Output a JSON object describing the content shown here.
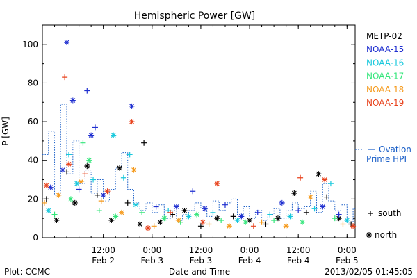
{
  "chart_data": {
    "type": "scatter",
    "title": "Hemispheric Power [GW]",
    "ylabel": "P [GW]",
    "xlabel": "Date and Time",
    "ylim": [
      0,
      110
    ],
    "y_ticks": [
      0,
      20,
      40,
      60,
      80,
      100
    ],
    "x_start": "2013-02-01T21:00",
    "x_end": "2013-02-05T02:00",
    "x_ticks": [
      {
        "x": "2013-02-02T12:00",
        "label": "12:00",
        "sublabel": "Feb 2"
      },
      {
        "x": "2013-02-03T00:00",
        "label": "0:00",
        "sublabel": "Feb 3"
      },
      {
        "x": "2013-02-03T12:00",
        "label": "12:00",
        "sublabel": "Feb 3"
      },
      {
        "x": "2013-02-04T00:00",
        "label": "0:00",
        "sublabel": "Feb 4"
      },
      {
        "x": "2013-02-04T12:00",
        "label": "12:00",
        "sublabel": "Feb 4"
      },
      {
        "x": "2013-02-05T00:00",
        "label": "0:00",
        "sublabel": "Feb 5"
      }
    ],
    "legend": {
      "placement": "right",
      "symbol_south_label": "south",
      "symbol_north_label": "north",
      "ovation_label_line1": "Ovation",
      "ovation_label_line2": "Prime HPI"
    },
    "series": [
      {
        "name": "METP-02",
        "color": "#000000",
        "points": [
          {
            "x": "2013-02-01T22:00",
            "y": 20,
            "hemi": "south"
          },
          {
            "x": "2013-02-02T00:30",
            "y": 9,
            "hemi": "north"
          },
          {
            "x": "2013-02-02T03:00",
            "y": 34,
            "hemi": "south"
          },
          {
            "x": "2013-02-02T05:00",
            "y": 18,
            "hemi": "north"
          },
          {
            "x": "2013-02-02T08:00",
            "y": 37,
            "hemi": "north"
          },
          {
            "x": "2013-02-02T10:30",
            "y": 22,
            "hemi": "south"
          },
          {
            "x": "2013-02-02T14:00",
            "y": 9,
            "hemi": "north"
          },
          {
            "x": "2013-02-02T16:00",
            "y": 36,
            "hemi": "north"
          },
          {
            "x": "2013-02-02T18:00",
            "y": 18,
            "hemi": "south"
          },
          {
            "x": "2013-02-02T21:00",
            "y": 7,
            "hemi": "north"
          },
          {
            "x": "2013-02-02T22:00",
            "y": 49,
            "hemi": "south"
          },
          {
            "x": "2013-02-03T02:00",
            "y": 8,
            "hemi": "north"
          },
          {
            "x": "2013-02-03T05:00",
            "y": 12,
            "hemi": "south"
          },
          {
            "x": "2013-02-03T08:00",
            "y": 14,
            "hemi": "north"
          },
          {
            "x": "2013-02-03T12:00",
            "y": 6,
            "hemi": "south"
          },
          {
            "x": "2013-02-03T16:00",
            "y": 10,
            "hemi": "north"
          },
          {
            "x": "2013-02-03T20:00",
            "y": 11,
            "hemi": "south"
          },
          {
            "x": "2013-02-04T00:00",
            "y": 9,
            "hemi": "north"
          },
          {
            "x": "2013-02-04T04:00",
            "y": 7,
            "hemi": "south"
          },
          {
            "x": "2013-02-04T07:00",
            "y": 10,
            "hemi": "north"
          },
          {
            "x": "2013-02-04T11:00",
            "y": 23,
            "hemi": "north"
          },
          {
            "x": "2013-02-04T14:00",
            "y": 13,
            "hemi": "south"
          },
          {
            "x": "2013-02-04T17:00",
            "y": 33,
            "hemi": "north"
          },
          {
            "x": "2013-02-04T19:00",
            "y": 21,
            "hemi": "south"
          },
          {
            "x": "2013-02-04T22:00",
            "y": 10,
            "hemi": "north"
          },
          {
            "x": "2013-02-05T01:00",
            "y": 7,
            "hemi": "south"
          }
        ]
      },
      {
        "name": "NOAA-15",
        "color": "#1f2fd0",
        "points": [
          {
            "x": "2013-02-01T23:00",
            "y": 26,
            "hemi": "north"
          },
          {
            "x": "2013-02-02T02:00",
            "y": 35,
            "hemi": "north"
          },
          {
            "x": "2013-02-02T03:00",
            "y": 101,
            "hemi": "north"
          },
          {
            "x": "2013-02-02T04:30",
            "y": 71,
            "hemi": "north"
          },
          {
            "x": "2013-02-02T06:00",
            "y": 25,
            "hemi": "south"
          },
          {
            "x": "2013-02-02T08:00",
            "y": 76,
            "hemi": "south"
          },
          {
            "x": "2013-02-02T09:00",
            "y": 53,
            "hemi": "north"
          },
          {
            "x": "2013-02-02T10:00",
            "y": 57,
            "hemi": "south"
          },
          {
            "x": "2013-02-02T12:00",
            "y": 22,
            "hemi": "north"
          },
          {
            "x": "2013-02-02T19:00",
            "y": 68,
            "hemi": "north"
          },
          {
            "x": "2013-02-03T01:00",
            "y": 16,
            "hemi": "south"
          },
          {
            "x": "2013-02-03T06:00",
            "y": 16,
            "hemi": "north"
          },
          {
            "x": "2013-02-03T10:00",
            "y": 24,
            "hemi": "south"
          },
          {
            "x": "2013-02-03T13:00",
            "y": 15,
            "hemi": "north"
          },
          {
            "x": "2013-02-03T18:00",
            "y": 17,
            "hemi": "south"
          },
          {
            "x": "2013-02-03T22:00",
            "y": 11,
            "hemi": "north"
          },
          {
            "x": "2013-02-04T02:00",
            "y": 13,
            "hemi": "south"
          },
          {
            "x": "2013-02-04T08:00",
            "y": 18,
            "hemi": "north"
          },
          {
            "x": "2013-02-04T12:00",
            "y": 14,
            "hemi": "south"
          },
          {
            "x": "2013-02-04T18:00",
            "y": 16,
            "hemi": "north"
          },
          {
            "x": "2013-02-04T22:00",
            "y": 12,
            "hemi": "south"
          }
        ]
      },
      {
        "name": "NOAA-16",
        "color": "#18c8dc",
        "points": [
          {
            "x": "2013-02-01T22:30",
            "y": 14,
            "hemi": "north"
          },
          {
            "x": "2013-02-02T03:30",
            "y": 43,
            "hemi": "south"
          },
          {
            "x": "2013-02-02T05:30",
            "y": 28,
            "hemi": "north"
          },
          {
            "x": "2013-02-02T09:30",
            "y": 30,
            "hemi": "south"
          },
          {
            "x": "2013-02-02T14:30",
            "y": 53,
            "hemi": "north"
          },
          {
            "x": "2013-02-02T17:00",
            "y": 31,
            "hemi": "south"
          },
          {
            "x": "2013-02-02T18:30",
            "y": 43,
            "hemi": "south"
          },
          {
            "x": "2013-02-02T20:00",
            "y": 17,
            "hemi": "north"
          },
          {
            "x": "2013-02-03T04:00",
            "y": 14,
            "hemi": "south"
          },
          {
            "x": "2013-02-03T09:00",
            "y": 11,
            "hemi": "north"
          },
          {
            "x": "2013-02-03T15:00",
            "y": 13,
            "hemi": "south"
          },
          {
            "x": "2013-02-03T21:00",
            "y": 9,
            "hemi": "north"
          },
          {
            "x": "2013-02-04T05:00",
            "y": 12,
            "hemi": "south"
          },
          {
            "x": "2013-02-04T10:00",
            "y": 11,
            "hemi": "north"
          },
          {
            "x": "2013-02-04T16:00",
            "y": 15,
            "hemi": "south"
          },
          {
            "x": "2013-02-04T20:00",
            "y": 28,
            "hemi": "south"
          },
          {
            "x": "2013-02-05T00:00",
            "y": 9,
            "hemi": "north"
          }
        ]
      },
      {
        "name": "NOAA-17",
        "color": "#33e67a",
        "points": [
          {
            "x": "2013-02-02T00:00",
            "y": 12,
            "hemi": "south"
          },
          {
            "x": "2013-02-02T04:00",
            "y": 20,
            "hemi": "north"
          },
          {
            "x": "2013-02-02T07:00",
            "y": 49,
            "hemi": "south"
          },
          {
            "x": "2013-02-02T08:30",
            "y": 40,
            "hemi": "north"
          },
          {
            "x": "2013-02-02T11:00",
            "y": 14,
            "hemi": "south"
          },
          {
            "x": "2013-02-02T15:00",
            "y": 11,
            "hemi": "north"
          },
          {
            "x": "2013-02-02T21:30",
            "y": 13,
            "hemi": "south"
          },
          {
            "x": "2013-02-03T03:00",
            "y": 10,
            "hemi": "north"
          },
          {
            "x": "2013-02-03T07:00",
            "y": 8,
            "hemi": "south"
          },
          {
            "x": "2013-02-03T11:00",
            "y": 12,
            "hemi": "north"
          },
          {
            "x": "2013-02-03T17:00",
            "y": 9,
            "hemi": "south"
          },
          {
            "x": "2013-02-03T23:00",
            "y": 8,
            "hemi": "north"
          },
          {
            "x": "2013-02-04T06:00",
            "y": 9,
            "hemi": "south"
          },
          {
            "x": "2013-02-04T13:00",
            "y": 8,
            "hemi": "north"
          },
          {
            "x": "2013-02-04T21:00",
            "y": 10,
            "hemi": "south"
          }
        ]
      },
      {
        "name": "NOAA-18",
        "color": "#f59a1c",
        "points": [
          {
            "x": "2013-02-01T21:30",
            "y": 18,
            "hemi": "south"
          },
          {
            "x": "2013-02-02T01:00",
            "y": 22,
            "hemi": "north"
          },
          {
            "x": "2013-02-02T06:30",
            "y": 29,
            "hemi": "north"
          },
          {
            "x": "2013-02-02T11:30",
            "y": 19,
            "hemi": "south"
          },
          {
            "x": "2013-02-02T16:30",
            "y": 13,
            "hemi": "north"
          },
          {
            "x": "2013-02-02T19:30",
            "y": 35,
            "hemi": "north"
          },
          {
            "x": "2013-02-03T00:30",
            "y": 6,
            "hemi": "south"
          },
          {
            "x": "2013-02-03T06:30",
            "y": 9,
            "hemi": "north"
          },
          {
            "x": "2013-02-03T14:00",
            "y": 7,
            "hemi": "south"
          },
          {
            "x": "2013-02-03T19:00",
            "y": 6,
            "hemi": "north"
          },
          {
            "x": "2013-02-04T03:00",
            "y": 8,
            "hemi": "south"
          },
          {
            "x": "2013-02-04T09:00",
            "y": 6,
            "hemi": "north"
          },
          {
            "x": "2013-02-04T15:00",
            "y": 21,
            "hemi": "north"
          },
          {
            "x": "2013-02-04T23:00",
            "y": 7,
            "hemi": "south"
          }
        ]
      },
      {
        "name": "NOAA-19",
        "color": "#e8421c",
        "points": [
          {
            "x": "2013-02-01T22:00",
            "y": 27,
            "hemi": "north"
          },
          {
            "x": "2013-02-02T02:30",
            "y": 83,
            "hemi": "south"
          },
          {
            "x": "2013-02-02T03:30",
            "y": 38,
            "hemi": "north"
          },
          {
            "x": "2013-02-02T07:30",
            "y": 33,
            "hemi": "south"
          },
          {
            "x": "2013-02-02T13:00",
            "y": 24,
            "hemi": "north"
          },
          {
            "x": "2013-02-02T19:00",
            "y": 60,
            "hemi": "north"
          },
          {
            "x": "2013-02-02T23:00",
            "y": 5,
            "hemi": "north"
          },
          {
            "x": "2013-02-03T04:30",
            "y": 13,
            "hemi": "south"
          },
          {
            "x": "2013-02-03T12:30",
            "y": 8,
            "hemi": "north"
          },
          {
            "x": "2013-02-03T16:00",
            "y": 28,
            "hemi": "north"
          },
          {
            "x": "2013-02-04T01:00",
            "y": 6,
            "hemi": "south"
          },
          {
            "x": "2013-02-04T12:30",
            "y": 31,
            "hemi": "south"
          },
          {
            "x": "2013-02-04T18:30",
            "y": 30,
            "hemi": "north"
          },
          {
            "x": "2013-02-05T01:30",
            "y": 6,
            "hemi": "north"
          }
        ]
      }
    ],
    "ovation": {
      "name": "Ovation Prime HPI",
      "color": "#1a5fc8",
      "points": [
        {
          "x": "2013-02-01T21:00",
          "y": 43
        },
        {
          "x": "2013-02-01T22:30",
          "y": 55
        },
        {
          "x": "2013-02-02T00:00",
          "y": 22
        },
        {
          "x": "2013-02-02T01:30",
          "y": 69
        },
        {
          "x": "2013-02-02T03:00",
          "y": 33
        },
        {
          "x": "2013-02-02T04:30",
          "y": 50
        },
        {
          "x": "2013-02-02T06:00",
          "y": 28
        },
        {
          "x": "2013-02-02T07:30",
          "y": 35
        },
        {
          "x": "2013-02-02T09:00",
          "y": 23
        },
        {
          "x": "2013-02-02T10:30",
          "y": 30
        },
        {
          "x": "2013-02-02T12:00",
          "y": 19
        },
        {
          "x": "2013-02-02T13:30",
          "y": 25
        },
        {
          "x": "2013-02-02T15:00",
          "y": 36
        },
        {
          "x": "2013-02-02T16:30",
          "y": 44
        },
        {
          "x": "2013-02-02T18:00",
          "y": 25
        },
        {
          "x": "2013-02-02T19:30",
          "y": 18
        },
        {
          "x": "2013-02-02T21:00",
          "y": 14
        },
        {
          "x": "2013-02-02T22:30",
          "y": 18
        },
        {
          "x": "2013-02-03T00:00",
          "y": 13
        },
        {
          "x": "2013-02-03T01:30",
          "y": 17
        },
        {
          "x": "2013-02-03T03:00",
          "y": 10
        },
        {
          "x": "2013-02-03T04:30",
          "y": 14
        },
        {
          "x": "2013-02-03T06:00",
          "y": 9
        },
        {
          "x": "2013-02-03T07:30",
          "y": 12
        },
        {
          "x": "2013-02-03T09:00",
          "y": 14
        },
        {
          "x": "2013-02-03T10:30",
          "y": 18
        },
        {
          "x": "2013-02-03T12:00",
          "y": 15
        },
        {
          "x": "2013-02-03T13:30",
          "y": 11
        },
        {
          "x": "2013-02-03T15:00",
          "y": 19
        },
        {
          "x": "2013-02-03T16:30",
          "y": 14
        },
        {
          "x": "2013-02-03T18:00",
          "y": 18
        },
        {
          "x": "2013-02-03T19:30",
          "y": 20
        },
        {
          "x": "2013-02-03T21:00",
          "y": 12
        },
        {
          "x": "2013-02-03T22:30",
          "y": 16
        },
        {
          "x": "2013-02-04T00:00",
          "y": 10
        },
        {
          "x": "2013-02-04T01:30",
          "y": 14
        },
        {
          "x": "2013-02-04T03:00",
          "y": 9
        },
        {
          "x": "2013-02-04T04:30",
          "y": 12
        },
        {
          "x": "2013-02-04T06:00",
          "y": 15
        },
        {
          "x": "2013-02-04T07:30",
          "y": 10
        },
        {
          "x": "2013-02-04T09:00",
          "y": 14
        },
        {
          "x": "2013-02-04T10:30",
          "y": 18
        },
        {
          "x": "2013-02-04T12:00",
          "y": 15
        },
        {
          "x": "2013-02-04T13:30",
          "y": 16
        },
        {
          "x": "2013-02-04T15:00",
          "y": 24
        },
        {
          "x": "2013-02-04T16:30",
          "y": 13
        },
        {
          "x": "2013-02-04T18:00",
          "y": 28
        },
        {
          "x": "2013-02-04T19:30",
          "y": 19
        },
        {
          "x": "2013-02-04T21:00",
          "y": 14
        },
        {
          "x": "2013-02-04T22:30",
          "y": 17
        },
        {
          "x": "2013-02-05T00:00",
          "y": 8
        },
        {
          "x": "2013-02-05T01:30",
          "y": 15
        },
        {
          "x": "2013-02-05T02:00",
          "y": 15
        }
      ]
    }
  },
  "footer": {
    "left": "Plot: CCMC",
    "center": "Date and Time",
    "right": "2013/02/05 01:45:05"
  }
}
